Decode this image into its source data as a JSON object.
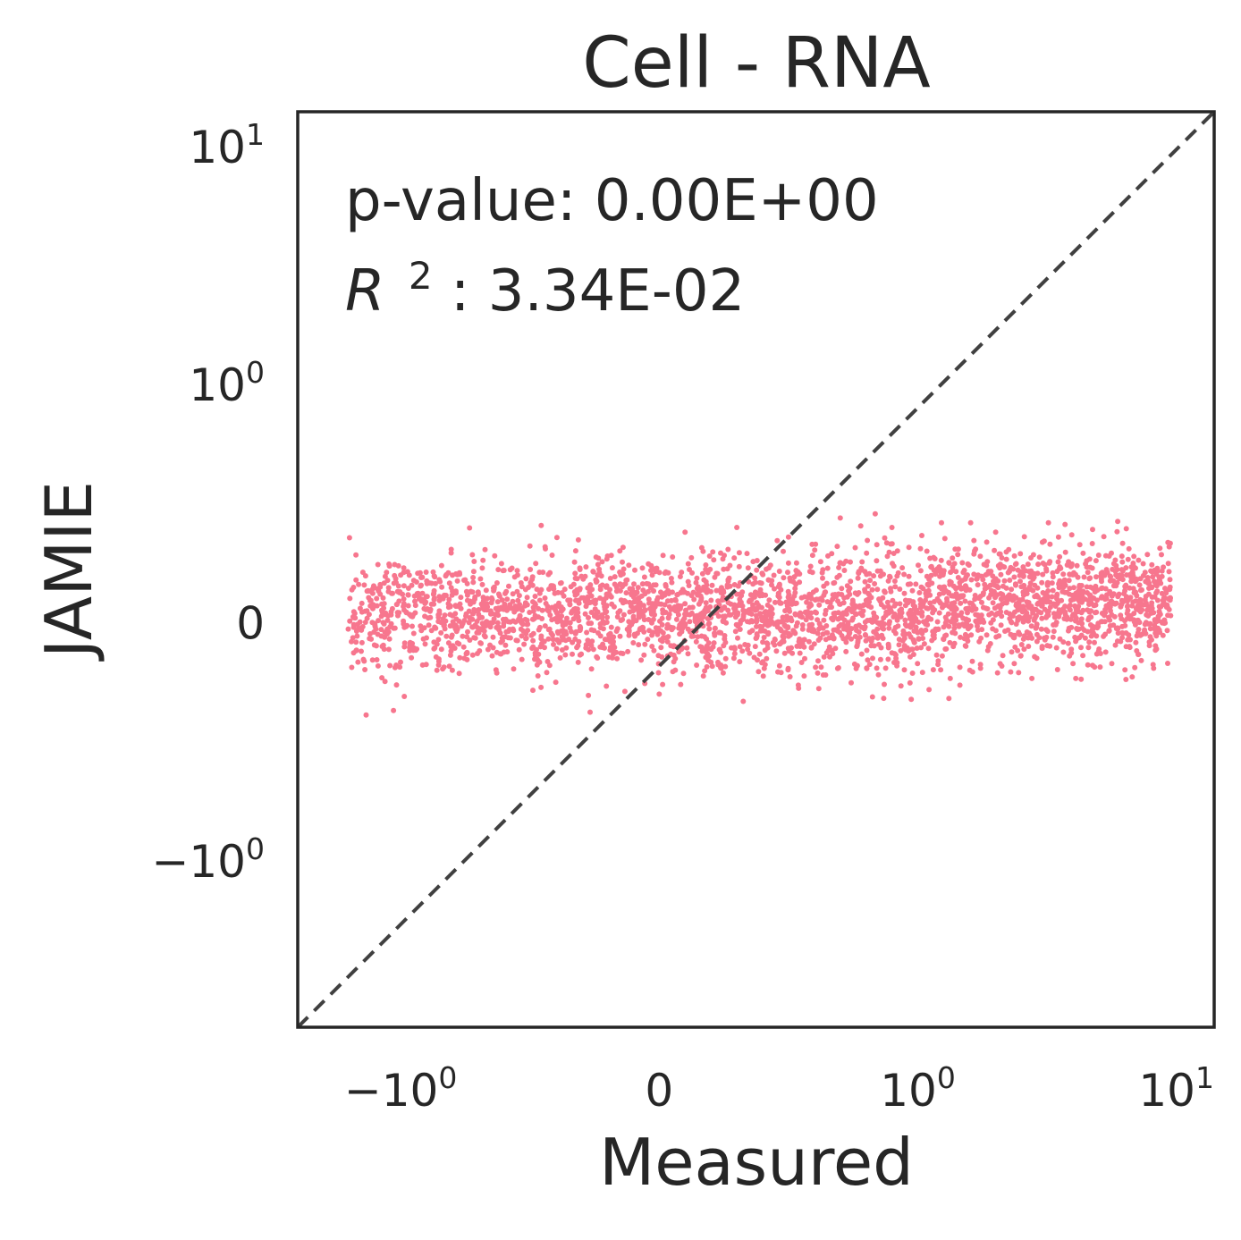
{
  "chart_data": {
    "type": "scatter",
    "title": "Cell - RNA",
    "xlabel": "Measured",
    "ylabel": "JAMIE",
    "xscale": "symlog",
    "yscale": "symlog",
    "linthresh": 1,
    "xlim": [
      -2.5,
      14
    ],
    "ylim": [
      -5,
      14
    ],
    "grid": false,
    "legend": "none",
    "point_color": "#f7768e",
    "reference_line": {
      "style": "dashed",
      "color": "#404040",
      "description": "y = x"
    },
    "x_ticks": [
      {
        "value": -1,
        "base": "−10",
        "exp": "0"
      },
      {
        "value": 0,
        "base": "0",
        "exp": ""
      },
      {
        "value": 1,
        "base": "10",
        "exp": "0"
      },
      {
        "value": 10,
        "base": "10",
        "exp": "1"
      }
    ],
    "y_ticks": [
      {
        "value": -1,
        "base": "−10",
        "exp": "0"
      },
      {
        "value": 0,
        "base": "0",
        "exp": ""
      },
      {
        "value": 1,
        "base": "10",
        "exp": "0"
      },
      {
        "value": 10,
        "base": "10",
        "exp": "1"
      }
    ],
    "annotations": {
      "pvalue": "p-value: 0.00E+00",
      "r2_symbol": "R",
      "r2_exp": "2",
      "r2_value": ": 3.34E-02"
    },
    "cluster": {
      "x_range": [
        -1.6,
        9.5
      ],
      "y_center": 0.03,
      "y_spread": 0.12,
      "n_points": 3200
    },
    "points": [
      [
        -1.55,
        -0.08
      ],
      [
        -1.5,
        0.02
      ],
      [
        -1.42,
        -0.12
      ],
      [
        -1.35,
        0.05
      ],
      [
        -1.2,
        0.15
      ],
      [
        -1.1,
        -0.18
      ],
      [
        -1.0,
        0.2
      ],
      [
        -0.8,
        -0.2
      ],
      [
        -0.6,
        0.22
      ],
      [
        -0.4,
        -0.25
      ],
      [
        -0.2,
        0.28
      ],
      [
        0.0,
        -0.3
      ],
      [
        0.1,
        0.38
      ],
      [
        0.3,
        0.4
      ],
      [
        0.5,
        0.36
      ],
      [
        0.7,
        0.44
      ],
      [
        0.9,
        0.4
      ],
      [
        1.2,
        -0.16
      ],
      [
        1.6,
        0.42
      ],
      [
        2.0,
        0.38
      ],
      [
        2.5,
        -0.14
      ],
      [
        3.2,
        0.42
      ],
      [
        3.5,
        0.36
      ],
      [
        4.5,
        0.26
      ],
      [
        5.0,
        -0.12
      ],
      [
        5.5,
        0.28
      ],
      [
        6.0,
        0.12
      ],
      [
        7.0,
        0.06
      ],
      [
        8.0,
        0.04
      ],
      [
        9.5,
        0.03
      ]
    ]
  }
}
